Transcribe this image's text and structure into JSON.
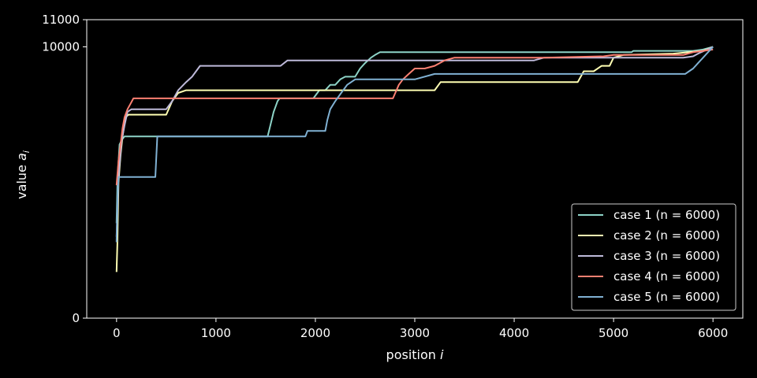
{
  "chart_data": {
    "type": "line",
    "xlabel_main": "position ",
    "xlabel_var": "i",
    "ylabel_main": "value ",
    "ylabel_var": "a",
    "ylabel_sub": "i",
    "xlim": [
      -300,
      6300
    ],
    "ylim": [
      0,
      11000
    ],
    "x_ticks": [
      0,
      1000,
      2000,
      3000,
      4000,
      5000,
      6000
    ],
    "y_ticks": [
      0,
      10000,
      11000
    ],
    "legend_position": "lower-right",
    "series": [
      {
        "name": "case 1 (n = 6000)",
        "color": "#8dd3c7",
        "points": [
          [
            0,
            3500
          ],
          [
            10,
            5200
          ],
          [
            30,
            6400
          ],
          [
            50,
            6550
          ],
          [
            80,
            6700
          ],
          [
            100,
            6700
          ],
          [
            1520,
            6700
          ],
          [
            1540,
            7000
          ],
          [
            1560,
            7300
          ],
          [
            1580,
            7600
          ],
          [
            1600,
            7800
          ],
          [
            1620,
            8000
          ],
          [
            1640,
            8100
          ],
          [
            1700,
            8100
          ],
          [
            1980,
            8100
          ],
          [
            2000,
            8200
          ],
          [
            2040,
            8400
          ],
          [
            2100,
            8400
          ],
          [
            2150,
            8600
          ],
          [
            2200,
            8600
          ],
          [
            2250,
            8800
          ],
          [
            2300,
            8900
          ],
          [
            2400,
            8900
          ],
          [
            2450,
            9200
          ],
          [
            2500,
            9400
          ],
          [
            2560,
            9600
          ],
          [
            2600,
            9700
          ],
          [
            2650,
            9800
          ],
          [
            2700,
            9800
          ],
          [
            5180,
            9800
          ],
          [
            5200,
            9850
          ],
          [
            5800,
            9850
          ],
          [
            5900,
            9900
          ],
          [
            6000,
            10000
          ]
        ]
      },
      {
        "name": "case 2 (n = 6000)",
        "color": "#ffffb3",
        "points": [
          [
            0,
            1700
          ],
          [
            8,
            2700
          ],
          [
            20,
            5000
          ],
          [
            40,
            6000
          ],
          [
            60,
            6700
          ],
          [
            90,
            7400
          ],
          [
            120,
            7500
          ],
          [
            500,
            7500
          ],
          [
            560,
            8000
          ],
          [
            620,
            8300
          ],
          [
            700,
            8400
          ],
          [
            2000,
            8400
          ],
          [
            2800,
            8400
          ],
          [
            3200,
            8400
          ],
          [
            3260,
            8700
          ],
          [
            3400,
            8700
          ],
          [
            4640,
            8700
          ],
          [
            4700,
            9100
          ],
          [
            4800,
            9100
          ],
          [
            4880,
            9300
          ],
          [
            4960,
            9300
          ],
          [
            5000,
            9600
          ],
          [
            5100,
            9700
          ],
          [
            5600,
            9750
          ],
          [
            5900,
            9850
          ],
          [
            6000,
            10000
          ]
        ]
      },
      {
        "name": "case 3 (n = 6000)",
        "color": "#bebada",
        "points": [
          [
            0,
            3000
          ],
          [
            20,
            5200
          ],
          [
            50,
            6500
          ],
          [
            80,
            7100
          ],
          [
            110,
            7600
          ],
          [
            150,
            7700
          ],
          [
            500,
            7700
          ],
          [
            560,
            8000
          ],
          [
            620,
            8400
          ],
          [
            700,
            8700
          ],
          [
            760,
            8900
          ],
          [
            840,
            9300
          ],
          [
            900,
            9300
          ],
          [
            1650,
            9300
          ],
          [
            1720,
            9500
          ],
          [
            1800,
            9500
          ],
          [
            4200,
            9500
          ],
          [
            4300,
            9600
          ],
          [
            5000,
            9600
          ],
          [
            5700,
            9600
          ],
          [
            5800,
            9650
          ],
          [
            5850,
            9750
          ],
          [
            6000,
            10000
          ]
        ]
      },
      {
        "name": "case 4 (n = 6000)",
        "color": "#fb8072",
        "points": [
          [
            0,
            4900
          ],
          [
            20,
            5800
          ],
          [
            40,
            6400
          ],
          [
            60,
            7000
          ],
          [
            80,
            7400
          ],
          [
            110,
            7700
          ],
          [
            140,
            7900
          ],
          [
            170,
            8100
          ],
          [
            700,
            8100
          ],
          [
            2000,
            8100
          ],
          [
            2780,
            8100
          ],
          [
            2840,
            8600
          ],
          [
            2880,
            8800
          ],
          [
            2940,
            9000
          ],
          [
            3000,
            9200
          ],
          [
            3100,
            9200
          ],
          [
            3200,
            9300
          ],
          [
            3300,
            9500
          ],
          [
            3400,
            9600
          ],
          [
            4300,
            9600
          ],
          [
            4900,
            9650
          ],
          [
            5000,
            9700
          ],
          [
            5700,
            9700
          ],
          [
            5800,
            9800
          ],
          [
            6000,
            9900
          ]
        ]
      },
      {
        "name": "case 5 (n = 6000)",
        "color": "#80b1d3",
        "points": [
          [
            0,
            2800
          ],
          [
            10,
            4500
          ],
          [
            20,
            5200
          ],
          [
            40,
            5200
          ],
          [
            390,
            5200
          ],
          [
            410,
            6700
          ],
          [
            430,
            6700
          ],
          [
            1900,
            6700
          ],
          [
            1920,
            6900
          ],
          [
            2100,
            6900
          ],
          [
            2120,
            7300
          ],
          [
            2150,
            7700
          ],
          [
            2200,
            8000
          ],
          [
            2260,
            8300
          ],
          [
            2320,
            8600
          ],
          [
            2400,
            8800
          ],
          [
            3000,
            8800
          ],
          [
            3200,
            9000
          ],
          [
            3300,
            9000
          ],
          [
            5720,
            9000
          ],
          [
            5760,
            9100
          ],
          [
            5800,
            9200
          ],
          [
            5850,
            9400
          ],
          [
            5900,
            9600
          ],
          [
            6000,
            10000
          ]
        ]
      }
    ]
  }
}
